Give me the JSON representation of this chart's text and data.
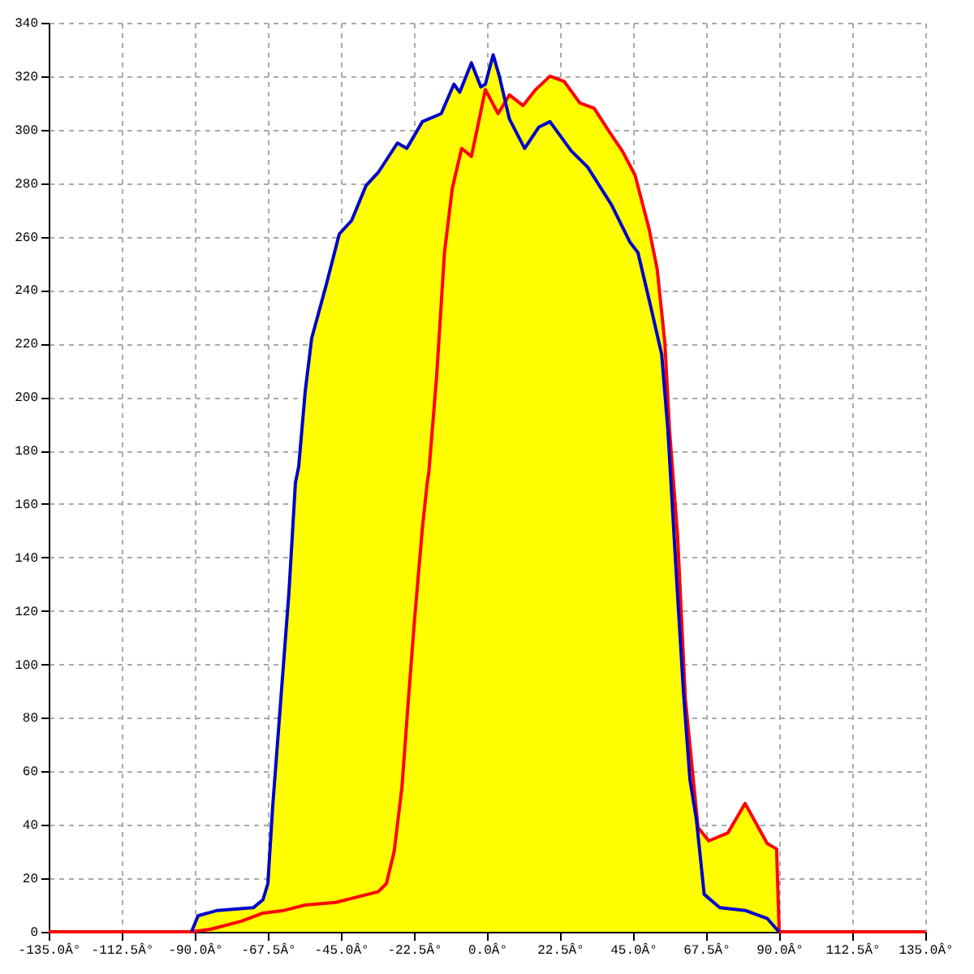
{
  "chart_data": {
    "type": "line",
    "grid": true,
    "line_style": "solid",
    "xlim": [
      -135,
      135
    ],
    "ylim": [
      0,
      340
    ],
    "xticks": [
      {
        "value": -135,
        "label": "-135.0Â°"
      },
      {
        "value": -112.5,
        "label": "-112.5Â°"
      },
      {
        "value": -90,
        "label": "-90.0Â°"
      },
      {
        "value": -67.5,
        "label": "-67.5Â°"
      },
      {
        "value": -45,
        "label": "-45.0Â°"
      },
      {
        "value": -22.5,
        "label": "-22.5Â°"
      },
      {
        "value": 0,
        "label": "0.0Â°"
      },
      {
        "value": 22.5,
        "label": "22.5Â°"
      },
      {
        "value": 45,
        "label": "45.0Â°"
      },
      {
        "value": 67.5,
        "label": "67.5Â°"
      },
      {
        "value": 90,
        "label": "90.0Â°"
      },
      {
        "value": 112.5,
        "label": "112.5Â°"
      },
      {
        "value": 135,
        "label": "135.0Â°"
      }
    ],
    "yticks": [
      0,
      20,
      40,
      60,
      80,
      100,
      120,
      140,
      160,
      180,
      200,
      220,
      240,
      260,
      280,
      300,
      320,
      340
    ],
    "series": [
      {
        "type": "area",
        "color": "#ffff00",
        "x": [
          -135,
          -91,
          -89,
          -83,
          -72,
          -69,
          -67.5,
          -66,
          -63.5,
          -61,
          -59,
          -58,
          -56,
          -54,
          -49.5,
          -45.5,
          -41.7,
          -37.3,
          -33.5,
          -27.6,
          -24.7,
          -19.9,
          -14.1,
          -10.2,
          -8.4,
          -4.8,
          -1.9,
          -0.5,
          1.9,
          3.8,
          5.5,
          6.9,
          11.1,
          15,
          19.4,
          23.8,
          28.6,
          33,
          37.8,
          41.7,
          45.6,
          49.9,
          52.4,
          54.8,
          56.2,
          58.7,
          61.1,
          65,
          68.3,
          74.2,
          79.5,
          86.3,
          89.2,
          90,
          135
        ],
        "values": [
          0,
          0,
          6,
          8,
          9,
          12,
          18,
          47,
          87,
          127,
          168,
          174,
          202,
          222,
          242,
          261,
          266,
          279,
          284,
          295,
          293,
          303,
          306,
          317,
          314,
          325,
          316,
          317,
          328,
          320,
          309,
          313,
          309,
          315,
          320,
          318,
          310,
          308,
          299,
          292,
          283,
          263,
          248,
          220,
          188,
          148,
          87,
          39,
          34,
          37,
          48,
          33,
          31,
          0,
          0
        ]
      },
      {
        "color": "#ff0000",
        "x": [
          -135,
          -91,
          -85,
          -75.6,
          -69,
          -62.5,
          -56,
          -46.5,
          -40,
          -33.5,
          -31,
          -28.6,
          -26.2,
          -24.2,
          -22.3,
          -19.9,
          -18.4,
          -17.9,
          -15.5,
          -13.1,
          -10.7,
          -7.8,
          -4.8,
          -2.9,
          -0.5,
          3.4,
          6.9,
          11.1,
          15,
          19.4,
          23.8,
          28.6,
          33,
          37.8,
          41.7,
          45.6,
          49.9,
          52.4,
          54.8,
          56.2,
          58.7,
          61.1,
          65,
          68.3,
          74.2,
          79.5,
          86.3,
          89.2,
          90,
          135
        ],
        "values": [
          0,
          0,
          1,
          4,
          7,
          8,
          10,
          11,
          13,
          15,
          18,
          30,
          54,
          87,
          117,
          151,
          168,
          172,
          208,
          254,
          278,
          293,
          290,
          301,
          315,
          306,
          313,
          309,
          315,
          320,
          318,
          310,
          308,
          299,
          292,
          283,
          263,
          248,
          220,
          188,
          148,
          87,
          39,
          34,
          37,
          48,
          33,
          31,
          0,
          0
        ]
      },
      {
        "color": "#0000cc",
        "x": [
          -91,
          -89,
          -83,
          -72,
          -69,
          -67.5,
          -66,
          -63.5,
          -61,
          -59,
          -58,
          -56,
          -54,
          -49.5,
          -45.5,
          -41.7,
          -37.3,
          -33.5,
          -27.6,
          -24.7,
          -19.9,
          -14.1,
          -10.2,
          -8.4,
          -4.8,
          -1.9,
          -0.5,
          1.9,
          3.8,
          6.9,
          11.6,
          16,
          19.4,
          26,
          31,
          38.3,
          44,
          46.5,
          50.4,
          53.8,
          55.7,
          58.5,
          60.5,
          62.5,
          64.5,
          66.9,
          71.7,
          79.5,
          86.3,
          89.2,
          90
        ],
        "values": [
          0,
          6,
          8,
          9,
          12,
          18,
          47,
          87,
          127,
          168,
          174,
          202,
          222,
          242,
          261,
          266,
          279,
          284,
          295,
          293,
          303,
          306,
          317,
          314,
          325,
          316,
          317,
          328,
          320,
          304,
          293,
          301,
          303,
          292,
          286,
          272,
          258,
          254,
          234,
          216,
          188,
          130,
          90,
          57,
          42,
          14,
          9,
          8,
          5,
          1,
          0
        ]
      }
    ]
  }
}
